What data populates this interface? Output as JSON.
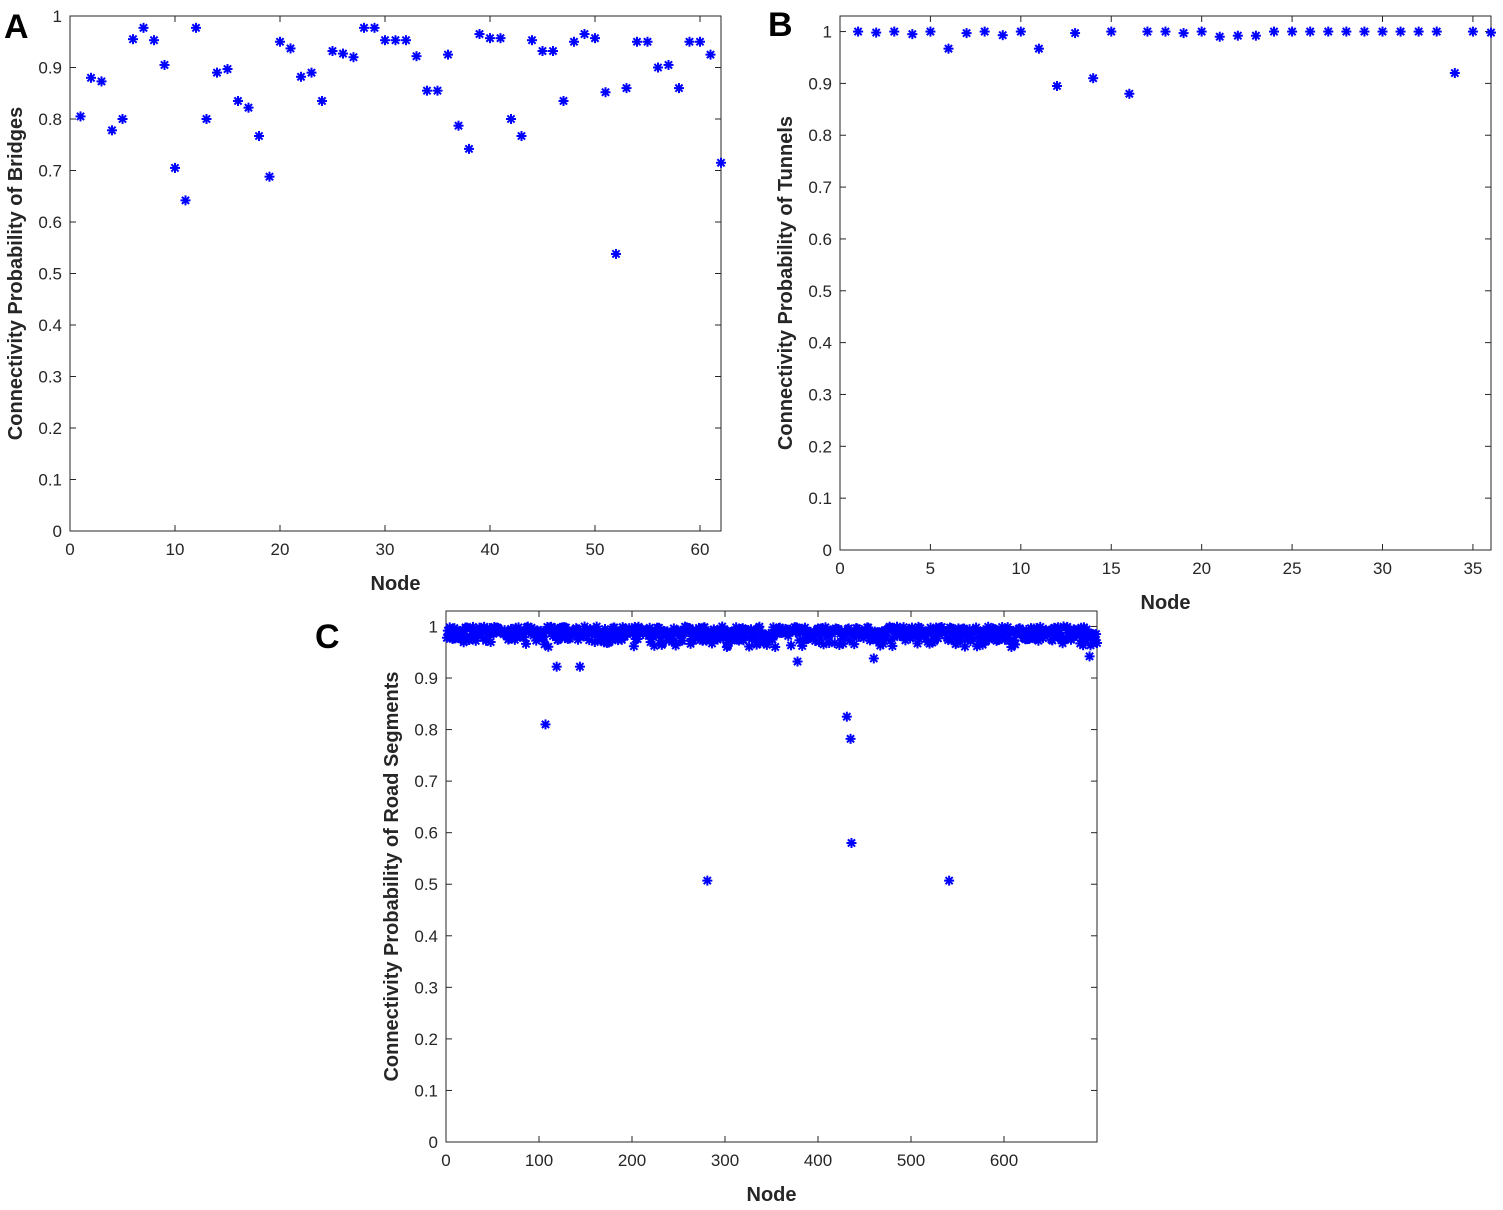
{
  "figure": {
    "panel_labels": [
      "A",
      "B",
      "C"
    ]
  },
  "chart_data": [
    {
      "type": "scatter",
      "panel": "A",
      "title": "",
      "xlabel": "Node",
      "ylabel": "Connectivity Probability of Bridges",
      "xlim": [
        0,
        62
      ],
      "ylim": [
        0,
        1
      ],
      "xticks": [
        0,
        10,
        20,
        30,
        40,
        50,
        60
      ],
      "yticks": [
        0,
        0.1,
        0.2,
        0.3,
        0.4,
        0.5,
        0.6,
        0.7,
        0.8,
        0.9,
        1
      ],
      "ytick_labels": [
        "0",
        "0.1",
        "0.2",
        "0.3",
        "0.4",
        "0.5",
        "0.6",
        "0.7",
        "0.8",
        "0.9",
        "1"
      ],
      "marker": "asterisk",
      "color": "#0000ff",
      "grid": false,
      "x": [
        1,
        2,
        3,
        4,
        5,
        6,
        7,
        8,
        9,
        10,
        11,
        12,
        13,
        14,
        15,
        16,
        17,
        18,
        19,
        20,
        21,
        22,
        23,
        24,
        25,
        26,
        27,
        28,
        29,
        30,
        31,
        32,
        33,
        34,
        35,
        36,
        37,
        38,
        39,
        40,
        41,
        42,
        43,
        44,
        45,
        46,
        47,
        48,
        49,
        50,
        51,
        52,
        53,
        54,
        55,
        56,
        57,
        58,
        59,
        60,
        61,
        62
      ],
      "y": [
        0.805,
        0.88,
        0.873,
        0.778,
        0.8,
        0.955,
        0.977,
        0.953,
        0.905,
        0.705,
        0.642,
        0.977,
        0.8,
        0.89,
        0.897,
        0.835,
        0.822,
        0.767,
        0.688,
        0.95,
        0.937,
        0.882,
        0.89,
        0.835,
        0.932,
        0.927,
        0.92,
        0.977,
        0.977,
        0.953,
        0.953,
        0.953,
        0.922,
        0.855,
        0.855,
        0.925,
        0.787,
        0.742,
        0.965,
        0.957,
        0.957,
        0.8,
        0.767,
        0.953,
        0.932,
        0.932,
        0.835,
        0.95,
        0.965,
        0.957,
        0.852,
        0.538,
        0.86,
        0.95,
        0.95,
        0.9,
        0.905,
        0.86,
        0.95,
        0.95,
        0.925,
        0.715
      ]
    },
    {
      "type": "scatter",
      "panel": "B",
      "title": "",
      "xlabel": "Node",
      "ylabel": "Connectivity Probability of Tunnels",
      "xlim": [
        0,
        36
      ],
      "ylim": [
        0,
        1.03
      ],
      "xticks": [
        0,
        5,
        10,
        15,
        20,
        25,
        30,
        35
      ],
      "yticks": [
        0,
        0.1,
        0.2,
        0.3,
        0.4,
        0.5,
        0.6,
        0.7,
        0.8,
        0.9,
        1
      ],
      "ytick_labels": [
        "0",
        "0.1",
        "0.2",
        "0.3",
        "0.4",
        "0.5",
        "0.6",
        "0.7",
        "0.8",
        "0.9",
        "1"
      ],
      "marker": "asterisk",
      "color": "#0000ff",
      "grid": false,
      "x": [
        1,
        2,
        3,
        4,
        5,
        6,
        7,
        8,
        9,
        10,
        11,
        12,
        13,
        14,
        15,
        16,
        17,
        18,
        19,
        20,
        21,
        22,
        23,
        24,
        25,
        26,
        27,
        28,
        29,
        30,
        31,
        32,
        33,
        34,
        35,
        36
      ],
      "y": [
        1.0,
        0.998,
        1.0,
        0.995,
        1.0,
        0.967,
        0.997,
        1.0,
        0.993,
        1.0,
        0.967,
        0.895,
        0.997,
        0.91,
        1.0,
        0.88,
        1.0,
        1.0,
        0.997,
        1.0,
        0.99,
        0.992,
        0.992,
        1.0,
        1.0,
        1.0,
        1.0,
        1.0,
        1.0,
        1.0,
        1.0,
        1.0,
        1.0,
        0.92,
        1.0,
        0.998
      ]
    },
    {
      "type": "scatter",
      "panel": "C",
      "title": "",
      "xlabel": "Node",
      "ylabel": "Connectivity Probability of Road Segments",
      "xlim": [
        0,
        700
      ],
      "ylim": [
        0,
        1.03
      ],
      "xticks": [
        0,
        100,
        200,
        300,
        400,
        500,
        600
      ],
      "yticks": [
        0,
        0.1,
        0.2,
        0.3,
        0.4,
        0.5,
        0.6,
        0.7,
        0.8,
        0.9,
        1
      ],
      "ytick_labels": [
        "0",
        "0.1",
        "0.2",
        "0.3",
        "0.4",
        "0.5",
        "0.6",
        "0.7",
        "0.8",
        "0.9",
        "1"
      ],
      "marker": "asterisk",
      "color": "#0000ff",
      "grid": false,
      "n_points": 700,
      "typical_range": [
        0.96,
        1.0
      ],
      "outliers": [
        {
          "x": 107,
          "y": 0.81
        },
        {
          "x": 119,
          "y": 0.922
        },
        {
          "x": 144,
          "y": 0.922
        },
        {
          "x": 281,
          "y": 0.507
        },
        {
          "x": 378,
          "y": 0.932
        },
        {
          "x": 431,
          "y": 0.825
        },
        {
          "x": 435,
          "y": 0.782
        },
        {
          "x": 436,
          "y": 0.58
        },
        {
          "x": 460,
          "y": 0.938
        },
        {
          "x": 541,
          "y": 0.507
        },
        {
          "x": 692,
          "y": 0.942
        }
      ]
    }
  ]
}
